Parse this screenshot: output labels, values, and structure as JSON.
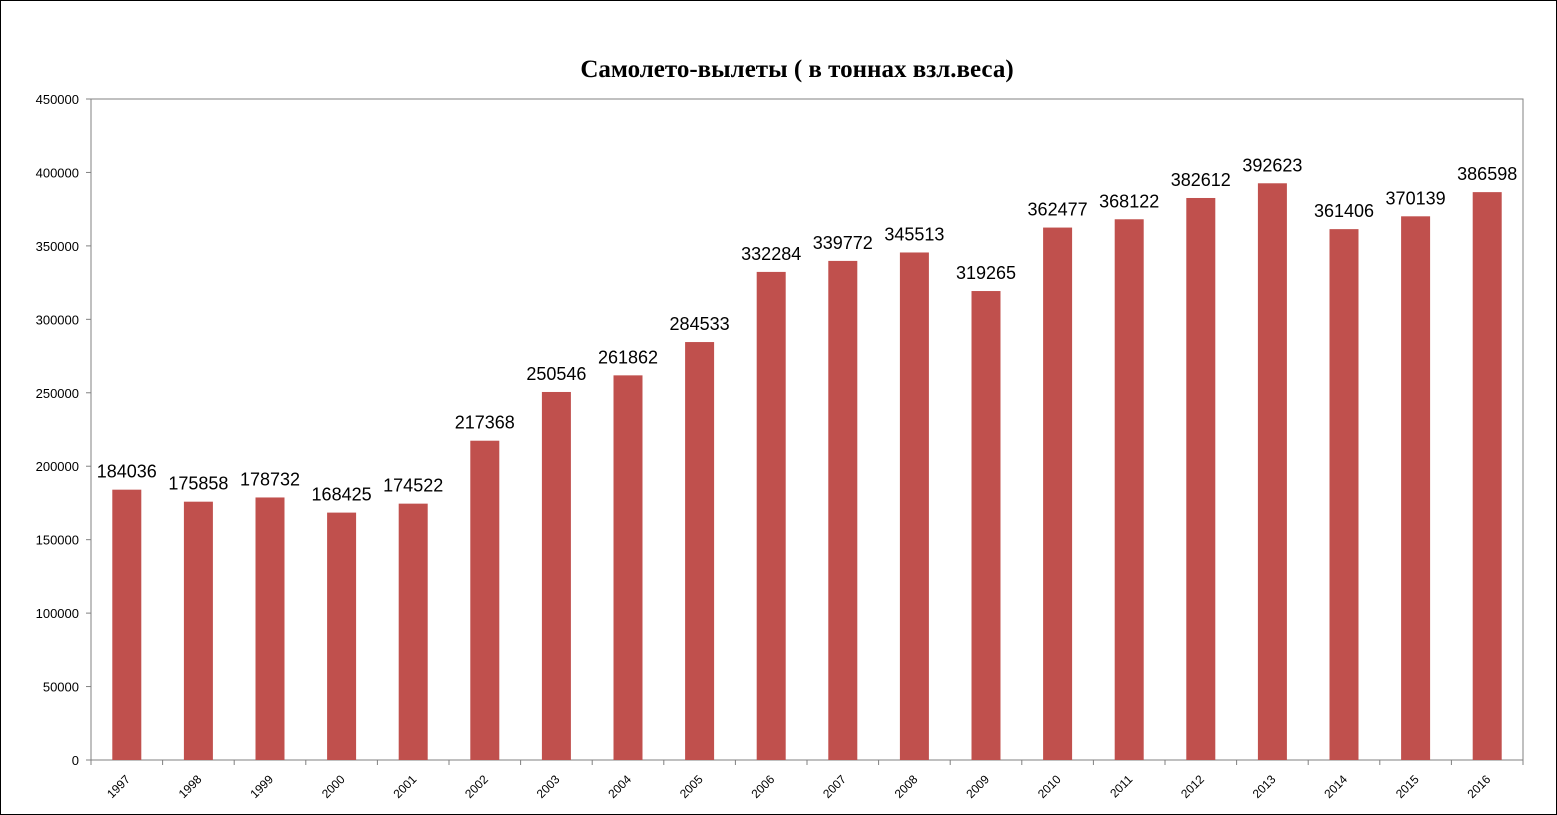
{
  "chart_data": {
    "type": "bar",
    "title": "Самолето-вылеты ( в тоннах взл.веса)",
    "xlabel": "",
    "ylabel": "",
    "categories": [
      "1997",
      "1998",
      "1999",
      "2000",
      "2001",
      "2002",
      "2003",
      "2004",
      "2005",
      "2006",
      "2007",
      "2008",
      "2009",
      "2010",
      "2011",
      "2012",
      "2013",
      "2014",
      "2015",
      "2016"
    ],
    "values": [
      184036,
      175858,
      178732,
      168425,
      174522,
      217368,
      250546,
      261862,
      284533,
      332284,
      339772,
      345513,
      319265,
      362477,
      368122,
      382612,
      392623,
      361406,
      370139,
      386598
    ],
    "y_ticks": [
      "0",
      "50000",
      "100000",
      "150000",
      "200000",
      "250000",
      "300000",
      "350000",
      "400000",
      "450000"
    ],
    "ylim": [
      0,
      450000
    ],
    "grid": false,
    "legend": "none",
    "data_labels": true,
    "bar_color": "#c0504d",
    "axis_color": "#808080"
  }
}
